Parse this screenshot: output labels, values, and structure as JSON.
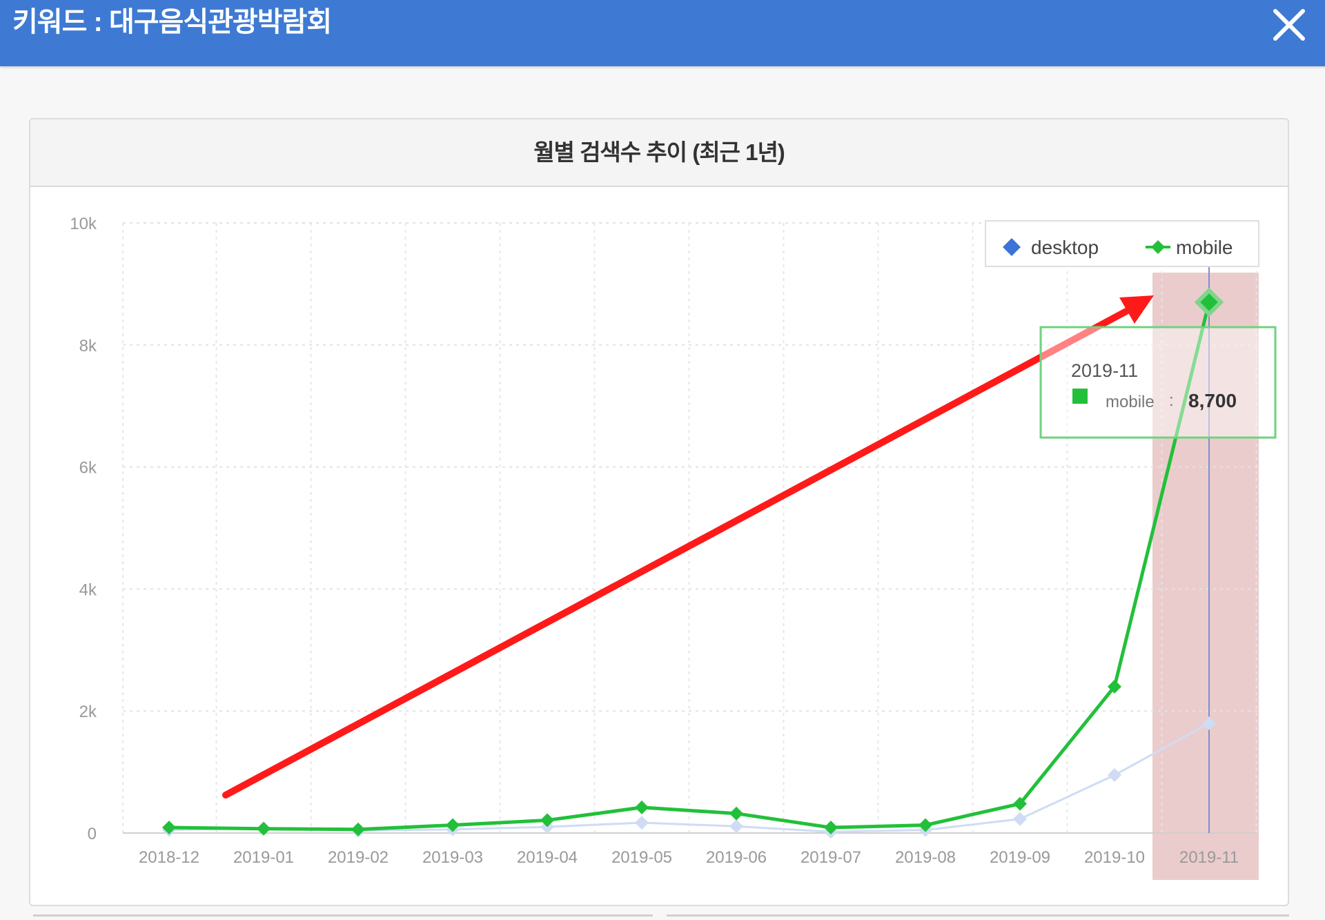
{
  "window": {
    "title": "키워드 : 대구음식관광박람회",
    "close_icon": "close-icon"
  },
  "colors": {
    "titlebar": "#3e7ad3",
    "desktop": "#cfdcf4",
    "desktop_legend": "#3d72d6",
    "mobile": "#22c03a",
    "highlight": "#e8c3c3",
    "arrow": "#ff1a1a",
    "tooltip_border": "#6fd27e"
  },
  "chart_data": {
    "type": "line",
    "title": "월별 검색수 추이 (최근 1년)",
    "categories": [
      "2018-12",
      "2019-01",
      "2019-02",
      "2019-03",
      "2019-04",
      "2019-05",
      "2019-06",
      "2019-07",
      "2019-08",
      "2019-09",
      "2019-10",
      "2019-11"
    ],
    "series": [
      {
        "name": "desktop",
        "values": [
          50,
          80,
          40,
          60,
          100,
          170,
          110,
          20,
          50,
          230,
          950,
          1800
        ]
      },
      {
        "name": "mobile",
        "values": [
          90,
          70,
          60,
          130,
          210,
          420,
          320,
          90,
          130,
          480,
          2400,
          8700
        ]
      }
    ],
    "yticks": [
      "0",
      "2k",
      "4k",
      "6k",
      "8k",
      "10k"
    ],
    "ylim": [
      0,
      10000
    ],
    "grid": true,
    "legend": "top-right",
    "tooltip": {
      "category": "2019-11",
      "series": "mobile",
      "separator": ":",
      "value": "8,700"
    }
  }
}
